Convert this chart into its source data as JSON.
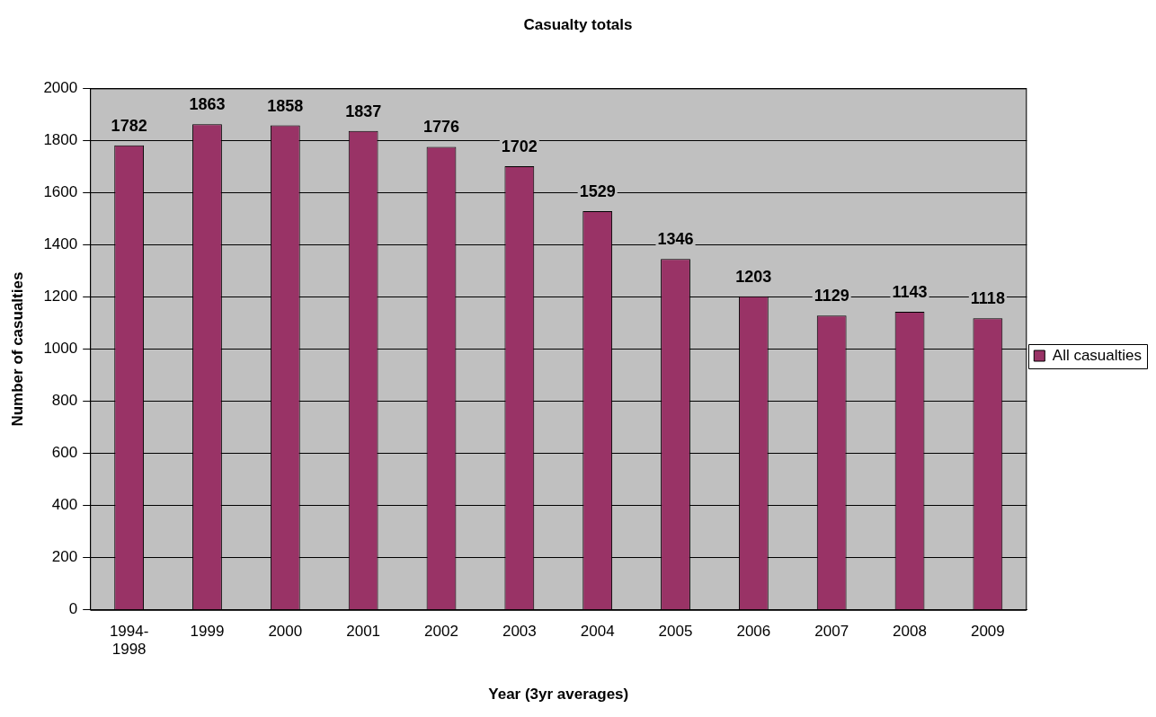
{
  "chart_data": {
    "type": "bar",
    "title": "Casualty totals",
    "xlabel": "Year (3yr averages)",
    "ylabel": "Number of casualties",
    "categories": [
      "1994-1998",
      "1999",
      "2000",
      "2001",
      "2002",
      "2003",
      "2004",
      "2005",
      "2006",
      "2007",
      "2008",
      "2009"
    ],
    "series": [
      {
        "name": "All casualties",
        "color": "#993366",
        "values": [
          1782,
          1863,
          1858,
          1837,
          1776,
          1702,
          1529,
          1346,
          1203,
          1129,
          1143,
          1118
        ]
      }
    ],
    "ylim": [
      0,
      2000
    ],
    "yticks": [
      0,
      200,
      400,
      600,
      800,
      1000,
      1200,
      1400,
      1600,
      1800,
      2000
    ],
    "grid": "y",
    "legend": "right",
    "data_labels": true
  }
}
